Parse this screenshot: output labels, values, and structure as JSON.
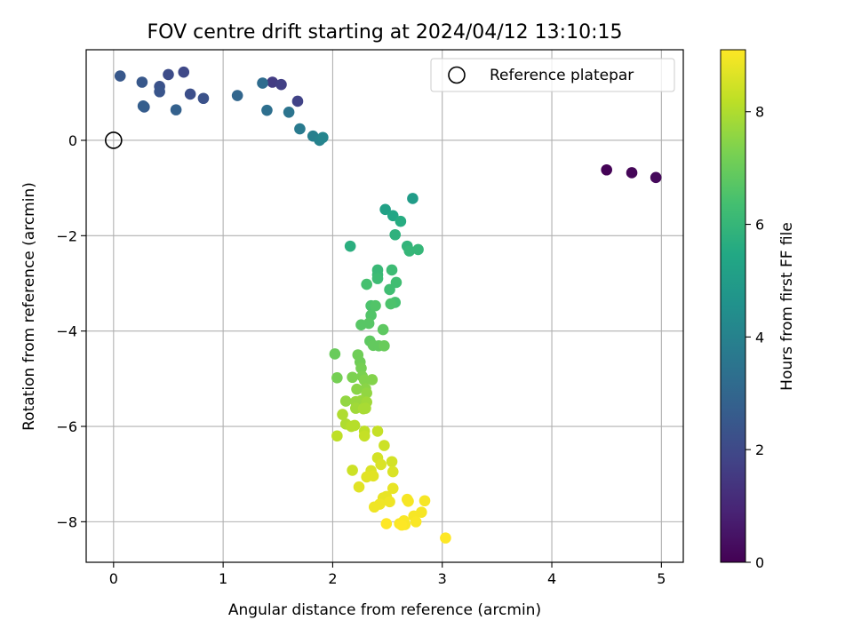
{
  "chart_data": {
    "type": "scatter",
    "title": "FOV centre drift starting at 2024/04/12 13:10:15",
    "xlabel": "Angular distance from reference (arcmin)",
    "ylabel": "Rotation from reference (arcmin)",
    "xlim": [
      -0.25,
      5.2
    ],
    "ylim": [
      -8.85,
      1.9
    ],
    "x_ticks": [
      0,
      1,
      2,
      3,
      4,
      5
    ],
    "x_tick_labels": [
      "0",
      "1",
      "2",
      "3",
      "4",
      "5"
    ],
    "y_ticks": [
      0,
      -2,
      -4,
      -6,
      -8
    ],
    "y_tick_labels": [
      "0",
      "−2",
      "−4",
      "−6",
      "−8"
    ],
    "grid": true,
    "legend": {
      "placement": "top-right",
      "entries": [
        "Reference platepar"
      ]
    },
    "reference_point": {
      "x": 0,
      "y": 0,
      "label": "Reference platepar"
    },
    "colorbar": {
      "label": "Hours from first FF file",
      "range": [
        0,
        9.1
      ],
      "ticks": [
        0,
        2,
        4,
        6,
        8
      ],
      "tick_labels": [
        "0",
        "2",
        "4",
        "6",
        "8"
      ],
      "colormap": "viridis"
    },
    "points": [
      [
        4.5,
        -0.62,
        0.05
      ],
      [
        4.73,
        -0.68,
        0.12
      ],
      [
        4.95,
        -0.78,
        0.2
      ],
      [
        1.45,
        1.22,
        1.6
      ],
      [
        1.53,
        1.17,
        1.7
      ],
      [
        1.68,
        0.82,
        1.8
      ],
      [
        0.64,
        1.43,
        2.0
      ],
      [
        0.5,
        1.38,
        2.1
      ],
      [
        0.7,
        0.97,
        2.2
      ],
      [
        0.82,
        0.88,
        2.3
      ],
      [
        0.42,
        1.13,
        2.3
      ],
      [
        0.42,
        1.02,
        2.4
      ],
      [
        0.26,
        1.22,
        2.5
      ],
      [
        0.06,
        1.35,
        2.5
      ],
      [
        0.28,
        0.7,
        2.6
      ],
      [
        0.27,
        0.72,
        2.7
      ],
      [
        0.57,
        0.64,
        2.8
      ],
      [
        1.13,
        0.94,
        3.0
      ],
      [
        1.36,
        1.2,
        3.2
      ],
      [
        1.4,
        0.63,
        3.3
      ],
      [
        1.6,
        0.59,
        3.5
      ],
      [
        1.7,
        0.24,
        3.7
      ],
      [
        1.82,
        0.09,
        3.9
      ],
      [
        1.88,
        0.0,
        4.0
      ],
      [
        1.91,
        0.06,
        4.1
      ],
      [
        2.73,
        -1.22,
        5.0
      ],
      [
        2.48,
        -1.45,
        5.2
      ],
      [
        2.55,
        -1.58,
        5.4
      ],
      [
        2.62,
        -1.7,
        5.6
      ],
      [
        2.16,
        -2.22,
        5.7
      ],
      [
        2.57,
        -1.98,
        5.8
      ],
      [
        2.68,
        -2.22,
        5.9
      ],
      [
        2.7,
        -2.32,
        6.0
      ],
      [
        2.78,
        -2.29,
        6.0
      ],
      [
        2.41,
        -2.72,
        6.1
      ],
      [
        2.41,
        -2.82,
        6.1
      ],
      [
        2.54,
        -2.72,
        6.2
      ],
      [
        2.41,
        -2.9,
        6.2
      ],
      [
        2.58,
        -2.98,
        6.3
      ],
      [
        2.52,
        -3.13,
        6.3
      ],
      [
        2.31,
        -3.02,
        6.4
      ],
      [
        2.57,
        -3.4,
        6.4
      ],
      [
        2.53,
        -3.43,
        6.5
      ],
      [
        2.35,
        -3.47,
        6.5
      ],
      [
        2.39,
        -3.47,
        6.6
      ],
      [
        2.35,
        -3.67,
        6.6
      ],
      [
        2.26,
        -3.87,
        6.7
      ],
      [
        2.33,
        -3.84,
        6.7
      ],
      [
        2.46,
        -3.97,
        6.8
      ],
      [
        2.34,
        -4.21,
        6.8
      ],
      [
        2.37,
        -4.3,
        6.9
      ],
      [
        2.42,
        -4.31,
        6.9
      ],
      [
        2.47,
        -4.31,
        7.0
      ],
      [
        2.02,
        -4.48,
        7.0
      ],
      [
        2.23,
        -4.5,
        7.1
      ],
      [
        2.25,
        -4.65,
        7.1
      ],
      [
        2.26,
        -4.78,
        7.2
      ],
      [
        2.04,
        -4.98,
        7.2
      ],
      [
        2.18,
        -4.97,
        7.3
      ],
      [
        2.27,
        -4.95,
        7.3
      ],
      [
        2.29,
        -5.03,
        7.4
      ],
      [
        2.36,
        -5.02,
        7.4
      ],
      [
        2.22,
        -5.22,
        7.5
      ],
      [
        2.3,
        -5.21,
        7.5
      ],
      [
        2.31,
        -5.3,
        7.6
      ],
      [
        2.12,
        -5.47,
        7.6
      ],
      [
        2.21,
        -5.48,
        7.7
      ],
      [
        2.26,
        -5.46,
        7.7
      ],
      [
        2.31,
        -5.49,
        7.8
      ],
      [
        2.21,
        -5.62,
        7.8
      ],
      [
        2.28,
        -5.63,
        7.9
      ],
      [
        2.3,
        -5.62,
        7.9
      ],
      [
        2.09,
        -5.75,
        8.0
      ],
      [
        2.12,
        -5.95,
        8.0
      ],
      [
        2.17,
        -6.0,
        8.1
      ],
      [
        2.2,
        -5.98,
        8.1
      ],
      [
        2.29,
        -6.1,
        8.2
      ],
      [
        2.04,
        -6.2,
        8.2
      ],
      [
        2.29,
        -6.2,
        8.3
      ],
      [
        2.41,
        -6.1,
        8.3
      ],
      [
        2.47,
        -6.4,
        8.4
      ],
      [
        2.18,
        -6.92,
        8.4
      ],
      [
        2.54,
        -6.74,
        8.5
      ],
      [
        2.41,
        -6.66,
        8.5
      ],
      [
        2.44,
        -6.8,
        8.6
      ],
      [
        2.35,
        -6.93,
        8.6
      ],
      [
        2.55,
        -6.95,
        8.6
      ],
      [
        2.31,
        -7.06,
        8.7
      ],
      [
        2.37,
        -7.04,
        8.7
      ],
      [
        2.24,
        -7.27,
        8.7
      ],
      [
        2.55,
        -7.3,
        8.8
      ],
      [
        2.46,
        -7.5,
        8.8
      ],
      [
        2.49,
        -7.47,
        8.8
      ],
      [
        2.52,
        -7.58,
        8.9
      ],
      [
        2.43,
        -7.63,
        8.9
      ],
      [
        2.38,
        -7.69,
        8.9
      ],
      [
        2.68,
        -7.53,
        9.0
      ],
      [
        2.69,
        -7.57,
        9.0
      ],
      [
        2.84,
        -7.56,
        9.0
      ],
      [
        2.81,
        -7.8,
        9.0
      ],
      [
        2.74,
        -7.88,
        9.0
      ],
      [
        2.65,
        -7.98,
        9.05
      ],
      [
        2.61,
        -8.04,
        9.05
      ],
      [
        2.76,
        -8.0,
        9.05
      ],
      [
        2.66,
        -8.06,
        9.05
      ],
      [
        2.49,
        -8.04,
        9.1
      ],
      [
        2.63,
        -8.07,
        9.1
      ],
      [
        3.03,
        -8.34,
        9.1
      ]
    ]
  }
}
